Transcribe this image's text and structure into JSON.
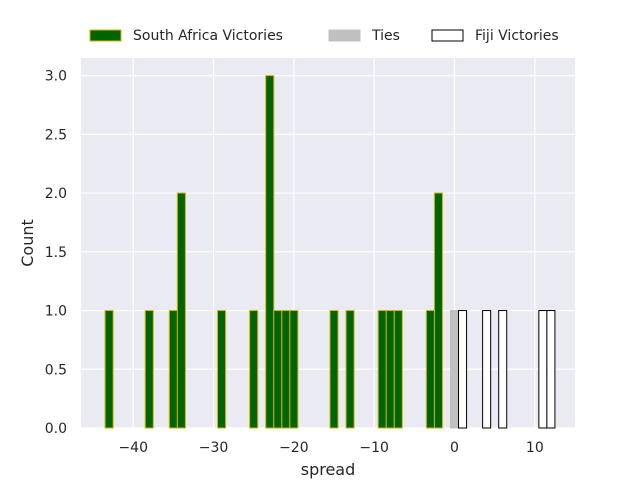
{
  "chart_data": {
    "type": "bar",
    "xlabel": "spread",
    "ylabel": "Count",
    "xlim": [
      -46.5,
      15
    ],
    "ylim": [
      0,
      3.15
    ],
    "bin_width": 1,
    "x_ticks": [
      -40,
      -30,
      -20,
      -10,
      0,
      10
    ],
    "x_tick_labels": [
      "−40",
      "−30",
      "−20",
      "−10",
      "0",
      "10"
    ],
    "y_ticks": [
      0,
      0.5,
      1.0,
      1.5,
      2.0,
      2.5,
      3.0
    ],
    "y_tick_labels": [
      "0.0",
      "0.5",
      "1.0",
      "1.5",
      "2.0",
      "2.5",
      "3.0"
    ],
    "grid": true,
    "background": "#eaeaf2",
    "legend_position": "top",
    "series": [
      {
        "name": "South Africa Victories",
        "fill": "#006400",
        "stroke": "#d4b000",
        "x": [
          -43,
          -38,
          -35,
          -34,
          -29,
          -25,
          -23,
          -22,
          -21,
          -20,
          -15,
          -13,
          -9,
          -8,
          -7,
          -3,
          -2
        ],
        "values": [
          1,
          1,
          1,
          2,
          1,
          1,
          3,
          1,
          1,
          1,
          1,
          1,
          1,
          1,
          1,
          1,
          2
        ]
      },
      {
        "name": "Ties",
        "fill": "#c0c0c0",
        "stroke": "#c0c0c0",
        "x": [
          0
        ],
        "values": [
          1
        ]
      },
      {
        "name": "Fiji Victories",
        "fill": "#ffffff",
        "stroke": "#000000",
        "x": [
          1,
          4,
          6,
          11,
          12
        ],
        "values": [
          1,
          1,
          1,
          1,
          1
        ]
      }
    ]
  }
}
